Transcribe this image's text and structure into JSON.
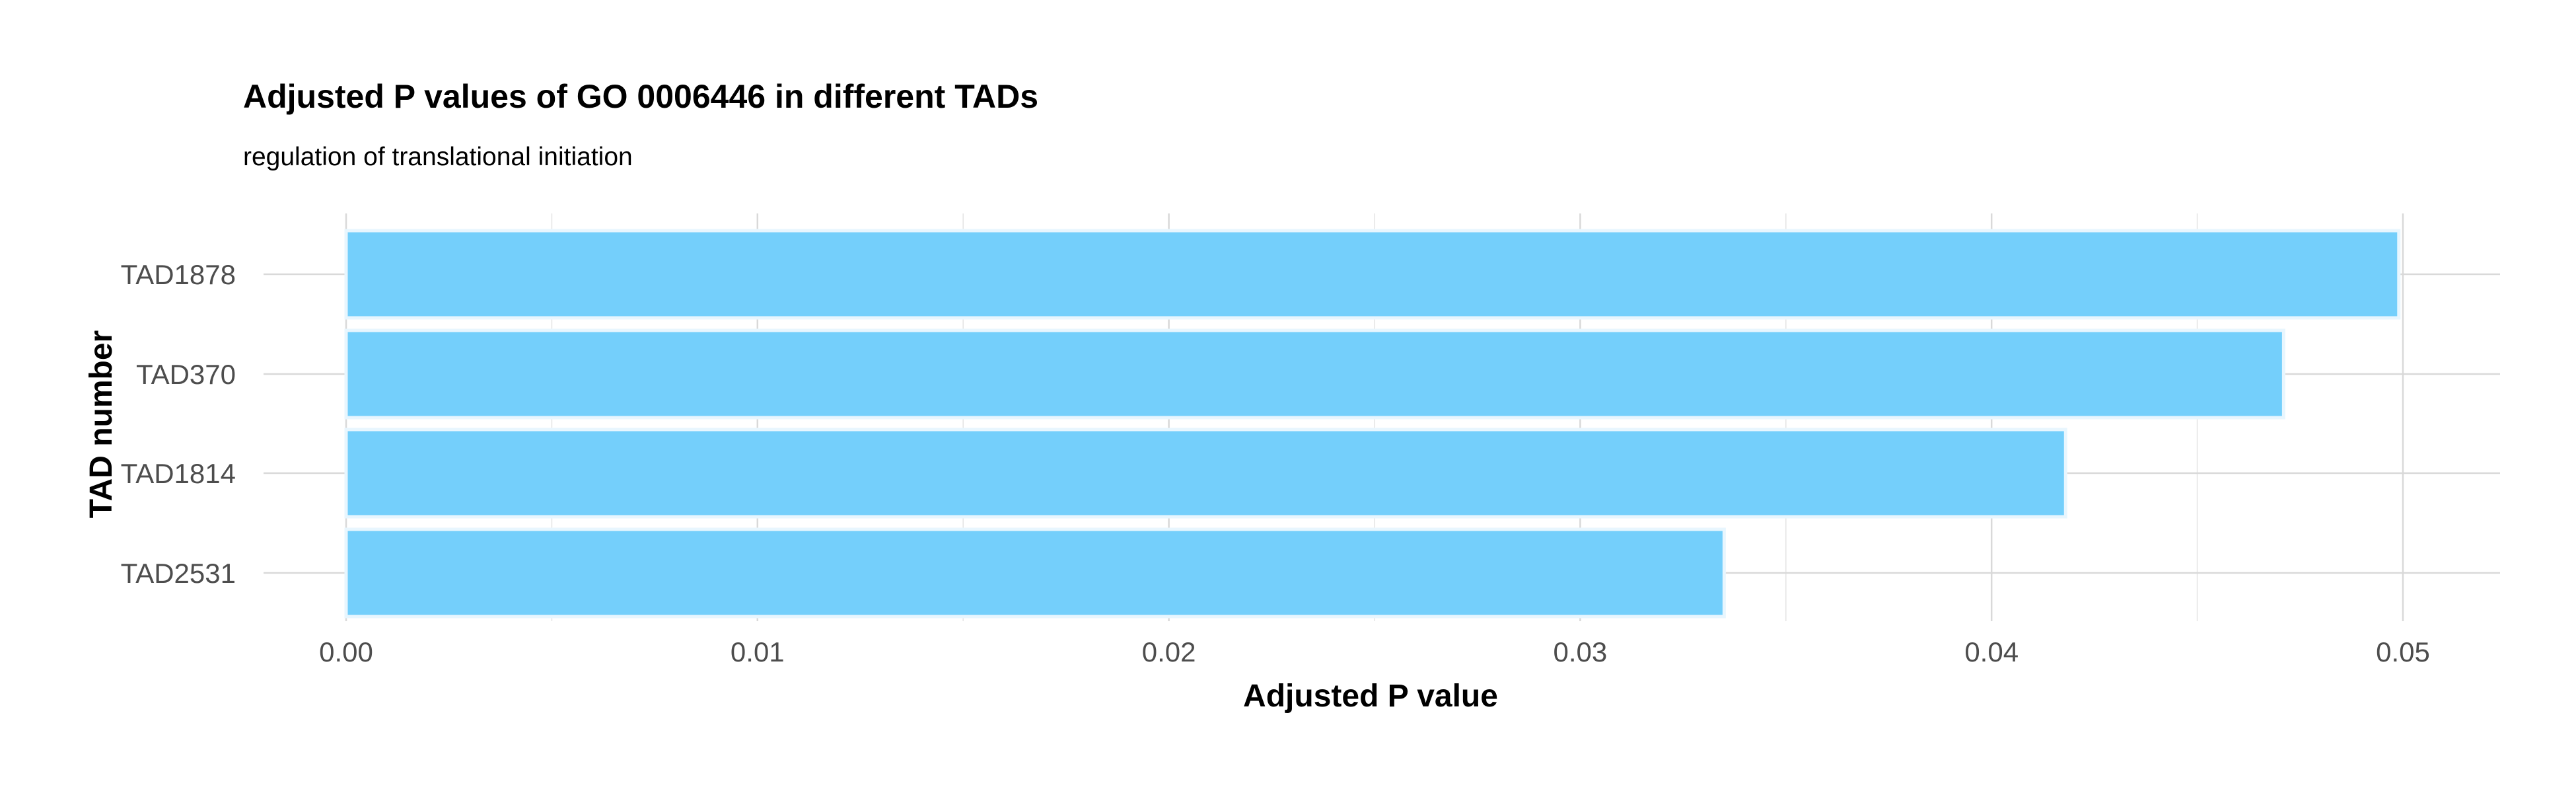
{
  "chart_data": {
    "type": "bar",
    "orientation": "horizontal",
    "title": "Adjusted P values of GO 0006446 in different TADs",
    "subtitle": "regulation of translational initiation",
    "xlabel": "Adjusted P value",
    "ylabel": "TAD number",
    "categories": [
      "TAD1878",
      "TAD370",
      "TAD1814",
      "TAD2531"
    ],
    "values": [
      0.0499,
      0.0471,
      0.0418,
      0.0335
    ],
    "xlim": [
      0,
      0.0524
    ],
    "xticks": [
      "0.00",
      "0.01",
      "0.02",
      "0.03",
      "0.04",
      "0.05"
    ],
    "xtick_values": [
      0,
      0.01,
      0.02,
      0.03,
      0.04,
      0.05
    ],
    "grid": true,
    "legend": "none",
    "colors": {
      "bar_fill": "#74cffb",
      "bar_border": "#e8f6fe"
    }
  }
}
